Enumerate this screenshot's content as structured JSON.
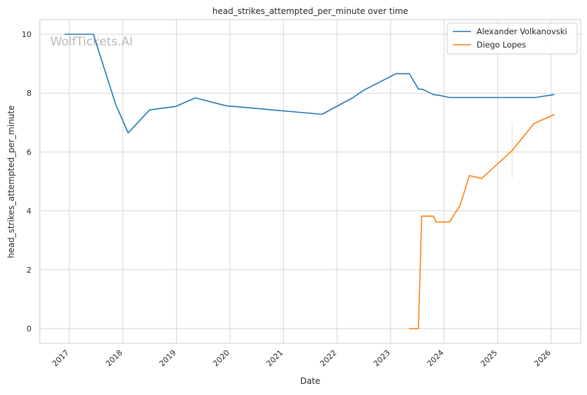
{
  "chart_data": {
    "type": "line",
    "title": "head_strikes_attempted_per_minute over time",
    "xlabel": "Date",
    "ylabel": "head_strikes_attempted_per_minute",
    "watermark": "WolfTickets.AI",
    "xlim": [
      2016.45,
      2026.55
    ],
    "ylim": [
      -0.5,
      10.5
    ],
    "x_ticks": [
      2017,
      2018,
      2019,
      2020,
      2021,
      2022,
      2023,
      2024,
      2025,
      2026
    ],
    "x_tick_labels": [
      "2017",
      "2018",
      "2019",
      "2020",
      "2021",
      "2022",
      "2023",
      "2024",
      "2025",
      "2026"
    ],
    "y_ticks": [
      0,
      2,
      4,
      6,
      8,
      10
    ],
    "y_tick_labels": [
      "0",
      "2",
      "4",
      "6",
      "8",
      "10"
    ],
    "grid": true,
    "legend": {
      "location": "top-right",
      "entries": [
        "Alexander Volkanovski",
        "Diego Lopes"
      ]
    },
    "series": [
      {
        "name": "Alexander Volkanovski",
        "color": "#1f77b4",
        "x": [
          2016.92,
          2017.45,
          2017.87,
          2018.1,
          2018.5,
          2018.99,
          2019.35,
          2019.93,
          2021.72,
          2022.3,
          2022.5,
          2023.1,
          2023.35,
          2023.52,
          2023.6,
          2023.8,
          2023.9,
          2024.1,
          2024.8,
          2025.7,
          2026.05
        ],
        "y": [
          10.0,
          10.0,
          7.6,
          6.65,
          7.43,
          7.55,
          7.84,
          7.57,
          7.28,
          7.85,
          8.1,
          8.66,
          8.66,
          8.14,
          8.13,
          7.95,
          7.93,
          7.85,
          7.85,
          7.85,
          7.95
        ]
      },
      {
        "name": "Diego Lopes",
        "color": "#ff7f0e",
        "x": [
          2023.35,
          2023.52,
          2023.58,
          2023.8,
          2023.85,
          2024.1,
          2024.3,
          2024.47,
          2024.7,
          2025.27,
          2025.68,
          2026.05
        ],
        "y": [
          0.0,
          0.0,
          3.82,
          3.82,
          3.62,
          3.62,
          4.2,
          5.2,
          5.1,
          6.05,
          6.97,
          7.27
        ]
      }
    ],
    "error_bars": [
      {
        "series": "Diego Lopes",
        "x": 2025.27,
        "y_low": 5.1,
        "y_high": 7.0
      }
    ]
  }
}
